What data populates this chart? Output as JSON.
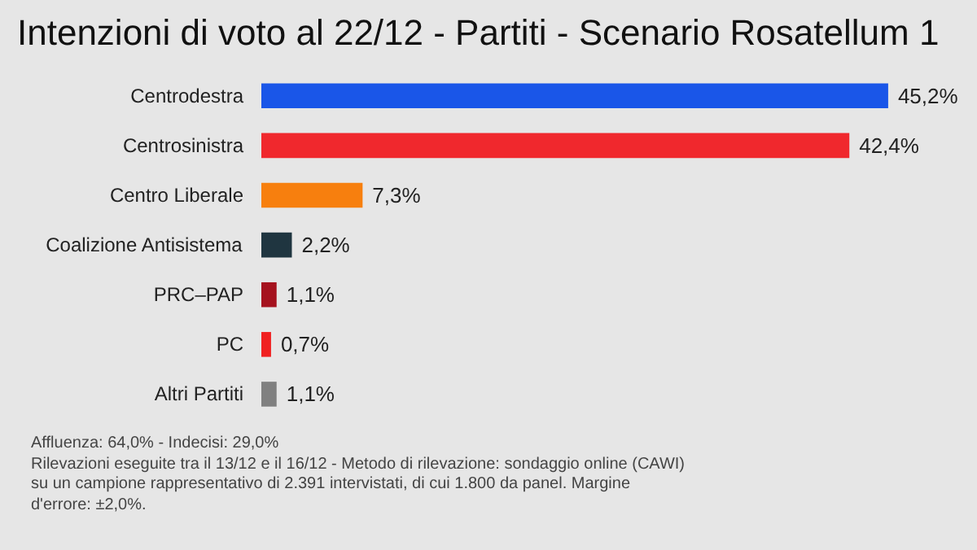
{
  "chart_data": {
    "type": "bar",
    "orientation": "horizontal",
    "title": "Intenzioni di voto al 22/12 - Partiti - Scenario Rosatellum 1",
    "categories": [
      "Centrodestra",
      "Centrosinistra",
      "Centro Liberale",
      "Coalizione Antisistema",
      "PRC–PAP",
      "PC",
      "Altri Partiti"
    ],
    "values": [
      45.2,
      42.4,
      7.3,
      2.2,
      1.1,
      0.7,
      1.1
    ],
    "colors": [
      "#1a56e8",
      "#f0282d",
      "#f77f0e",
      "#1f3540",
      "#a5121e",
      "#f02020",
      "#808080"
    ],
    "value_labels": [
      "45,2%",
      "42,4%",
      "7,3%",
      "2,2%",
      "1,1%",
      "0,7%",
      "1,1%"
    ],
    "annotations": [
      "Affluenza: 64,0% - Indecisi: 29,0%",
      "Rilevazioni eseguite tra il 13/12 e il 16/12 - Metodo di rilevazione: sondaggio online (CAWI) su un campione rappresentativo di 2.391 intervistati, di cui 1.800 da panel. Margine d'errore: ±2,0%."
    ],
    "data_labels": false
  }
}
